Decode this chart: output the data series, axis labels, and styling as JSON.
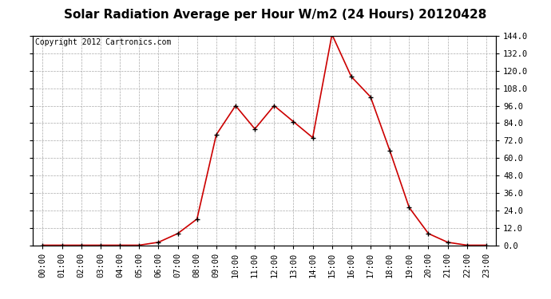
{
  "title": "Solar Radiation Average per Hour W/m2 (24 Hours) 20120428",
  "copyright_text": "Copyright 2012 Cartronics.com",
  "hours": [
    "00:00",
    "01:00",
    "02:00",
    "03:00",
    "04:00",
    "05:00",
    "06:00",
    "07:00",
    "08:00",
    "09:00",
    "10:00",
    "11:00",
    "12:00",
    "13:00",
    "14:00",
    "15:00",
    "16:00",
    "17:00",
    "18:00",
    "19:00",
    "20:00",
    "21:00",
    "22:00",
    "23:00"
  ],
  "values": [
    0,
    0,
    0,
    0,
    0,
    0,
    2,
    8,
    18,
    76,
    96,
    80,
    96,
    85,
    74,
    145,
    116,
    102,
    65,
    26,
    8,
    2,
    0,
    0
  ],
  "line_color": "#cc0000",
  "marker": "+",
  "marker_color": "#000000",
  "background_color": "#ffffff",
  "grid_color": "#aaaaaa",
  "ylim": [
    0,
    144
  ],
  "yticks": [
    0,
    12,
    24,
    36,
    48,
    60,
    72,
    84,
    96,
    108,
    120,
    132,
    144
  ],
  "title_fontsize": 11,
  "copyright_fontsize": 7,
  "tick_fontsize": 7.5,
  "ylabel_fontsize": 8
}
